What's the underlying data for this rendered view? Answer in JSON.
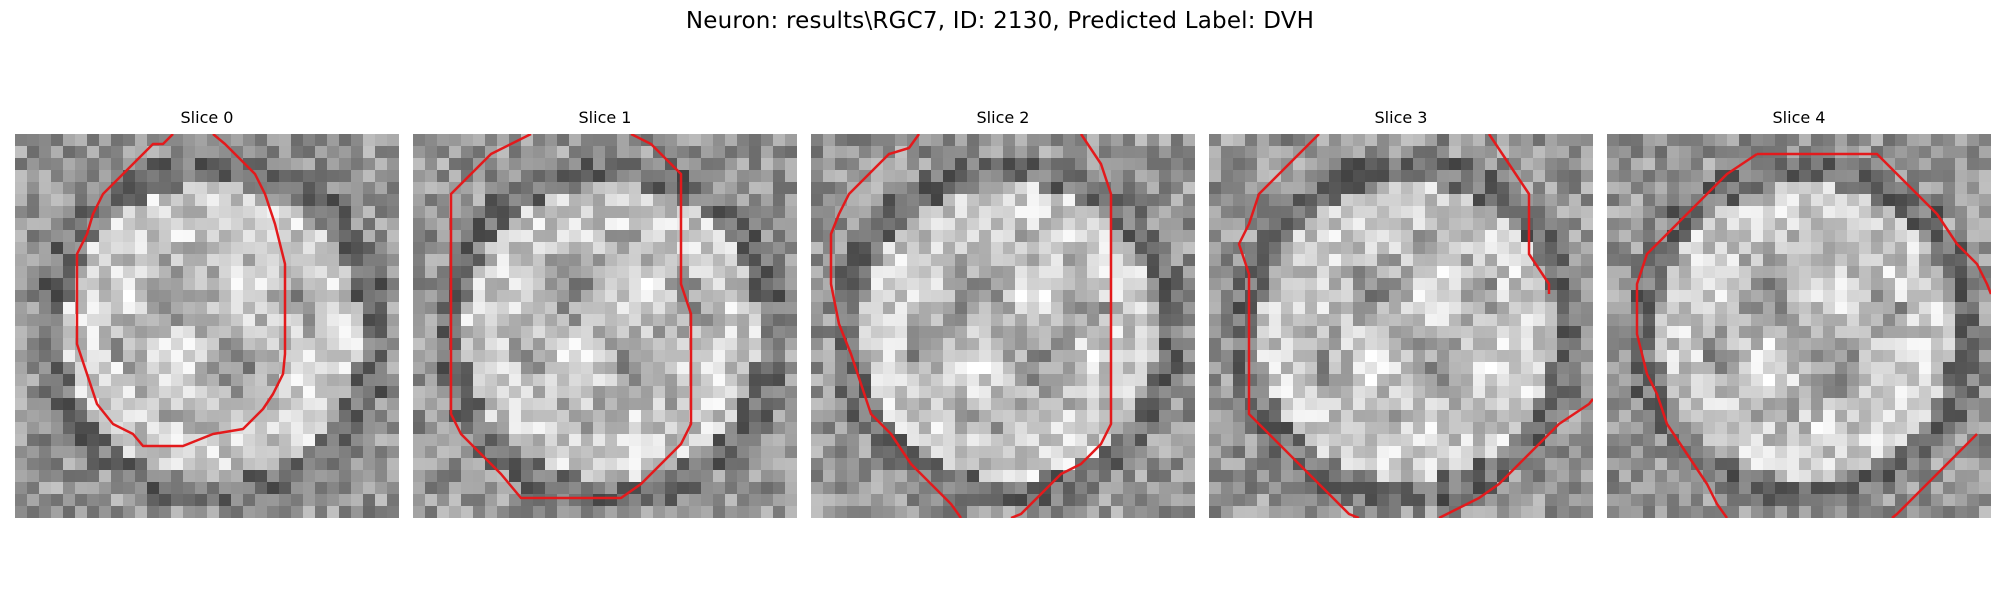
{
  "figure": {
    "title": "Neuron: results\\RGC7, ID: 2130, Predicted Label: DVH"
  },
  "panels": [
    {
      "label": "Slice 0",
      "seed": 11,
      "contour": "oval"
    },
    {
      "label": "Slice 1",
      "seed": 23,
      "contour": "round"
    },
    {
      "label": "Slice 2",
      "seed": 37,
      "contour": "split-left"
    },
    {
      "label": "Slice 3",
      "seed": 41,
      "contour": "split-wide"
    },
    {
      "label": "Slice 4",
      "seed": 53,
      "contour": "split-right"
    }
  ],
  "colors": {
    "contour": "#e31a1c",
    "background": "#ffffff"
  }
}
